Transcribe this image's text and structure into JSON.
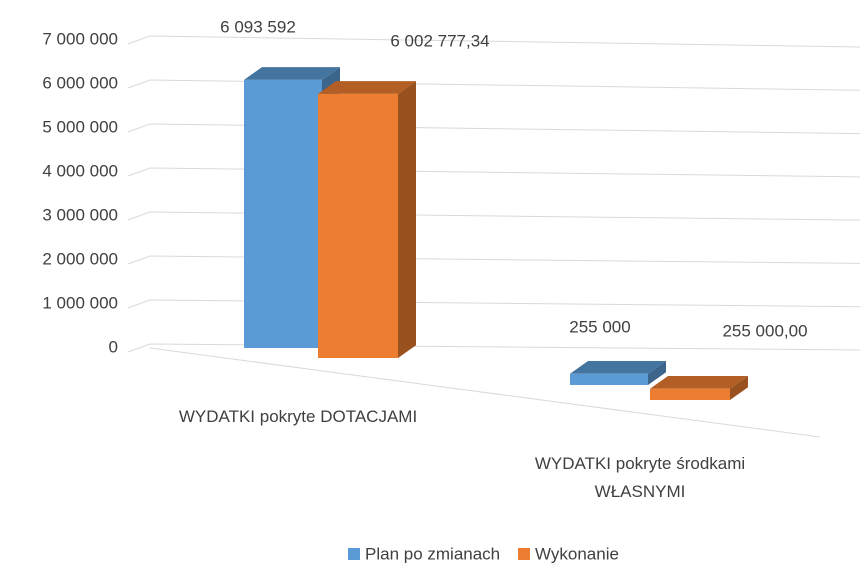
{
  "chart_data": {
    "type": "bar3d",
    "categories": [
      "WYDATKI pokryte DOTACJAMI",
      "WYDATKI pokryte środkami WŁASNYMI"
    ],
    "series": [
      {
        "name": "Plan po zmianach",
        "color": "#5b9bd5",
        "values": [
          6093592,
          255000
        ],
        "value_labels": [
          "6 093 592",
          "255 000"
        ]
      },
      {
        "name": "Wykonanie",
        "color": "#ed7d31",
        "values": [
          6002777.34,
          255000
        ],
        "value_labels": [
          "6 002 777,34",
          "255 000,00"
        ]
      }
    ],
    "ylim": [
      0,
      7000000
    ],
    "yticks": [
      0,
      {
        "value": 1000000,
        "label": "1 000 000"
      },
      {
        "value": 2000000,
        "label": "2 000 000"
      },
      {
        "value": 3000000,
        "label": "3 000 000"
      },
      {
        "value": 4000000,
        "label": "4 000 000"
      },
      {
        "value": 5000000,
        "label": "5 000 000"
      },
      {
        "value": 6000000,
        "label": "6 000 000"
      },
      {
        "value": 7000000,
        "label": "7 000 000"
      }
    ],
    "grid": true,
    "legend": "bottom"
  }
}
